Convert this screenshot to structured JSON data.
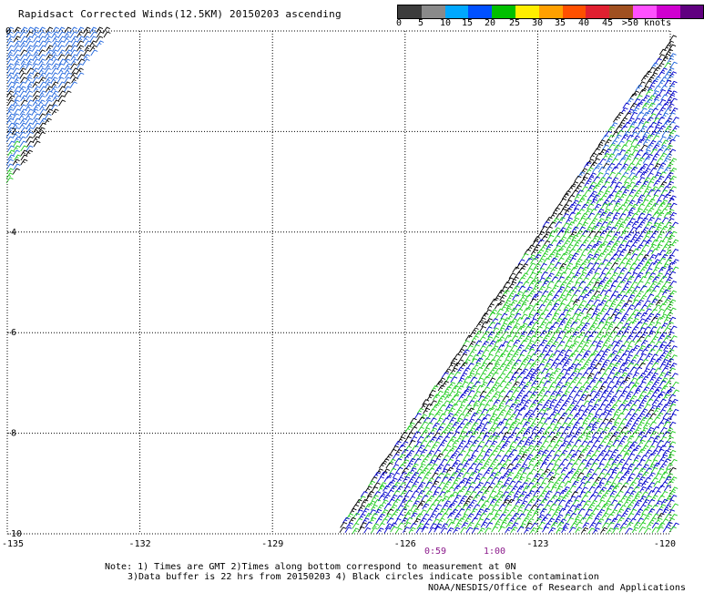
{
  "title": "Rapidsact Corrected Winds(12.5KM) 20150203 ascending",
  "colorbar": {
    "colors": [
      "#3c3c3c",
      "#8a8a8a",
      "#00a8ff",
      "#0050ff",
      "#00c000",
      "#ffee00",
      "#ffa000",
      "#ff5000",
      "#e02030",
      "#a05020",
      "#ff50ff",
      "#d000d0",
      "#600080"
    ],
    "labels": [
      "0",
      "5",
      "10",
      "15",
      "20",
      "25",
      "30",
      "35",
      "40",
      "45",
      ">50 knots"
    ]
  },
  "map": {
    "lon_ticks": [
      "-135",
      "-132",
      "-129",
      "-126",
      "-123",
      "-120"
    ],
    "lat_ticks": [
      "0",
      "-2",
      "-4",
      "-6",
      "-8",
      "-10"
    ],
    "lon_range": [
      -135,
      -120
    ],
    "lat_range": [
      -10,
      0
    ],
    "grid": "dotted",
    "barb_colors": {
      "black": "#000000",
      "blue": "#0000cc",
      "sky_blue": "#1e64dc",
      "green": "#22cc22"
    }
  },
  "times": [
    "0:59",
    "1:00"
  ],
  "notes": {
    "line1": "Note: 1) Times are GMT 2)Times along bottom correspond to measurement at 0N",
    "line2": "3)Data buffer is 22 hrs from 20150203 4) Black circles indicate possible contamination",
    "line3": "NOAA/NESDIS/Office of Research and Applications"
  }
}
